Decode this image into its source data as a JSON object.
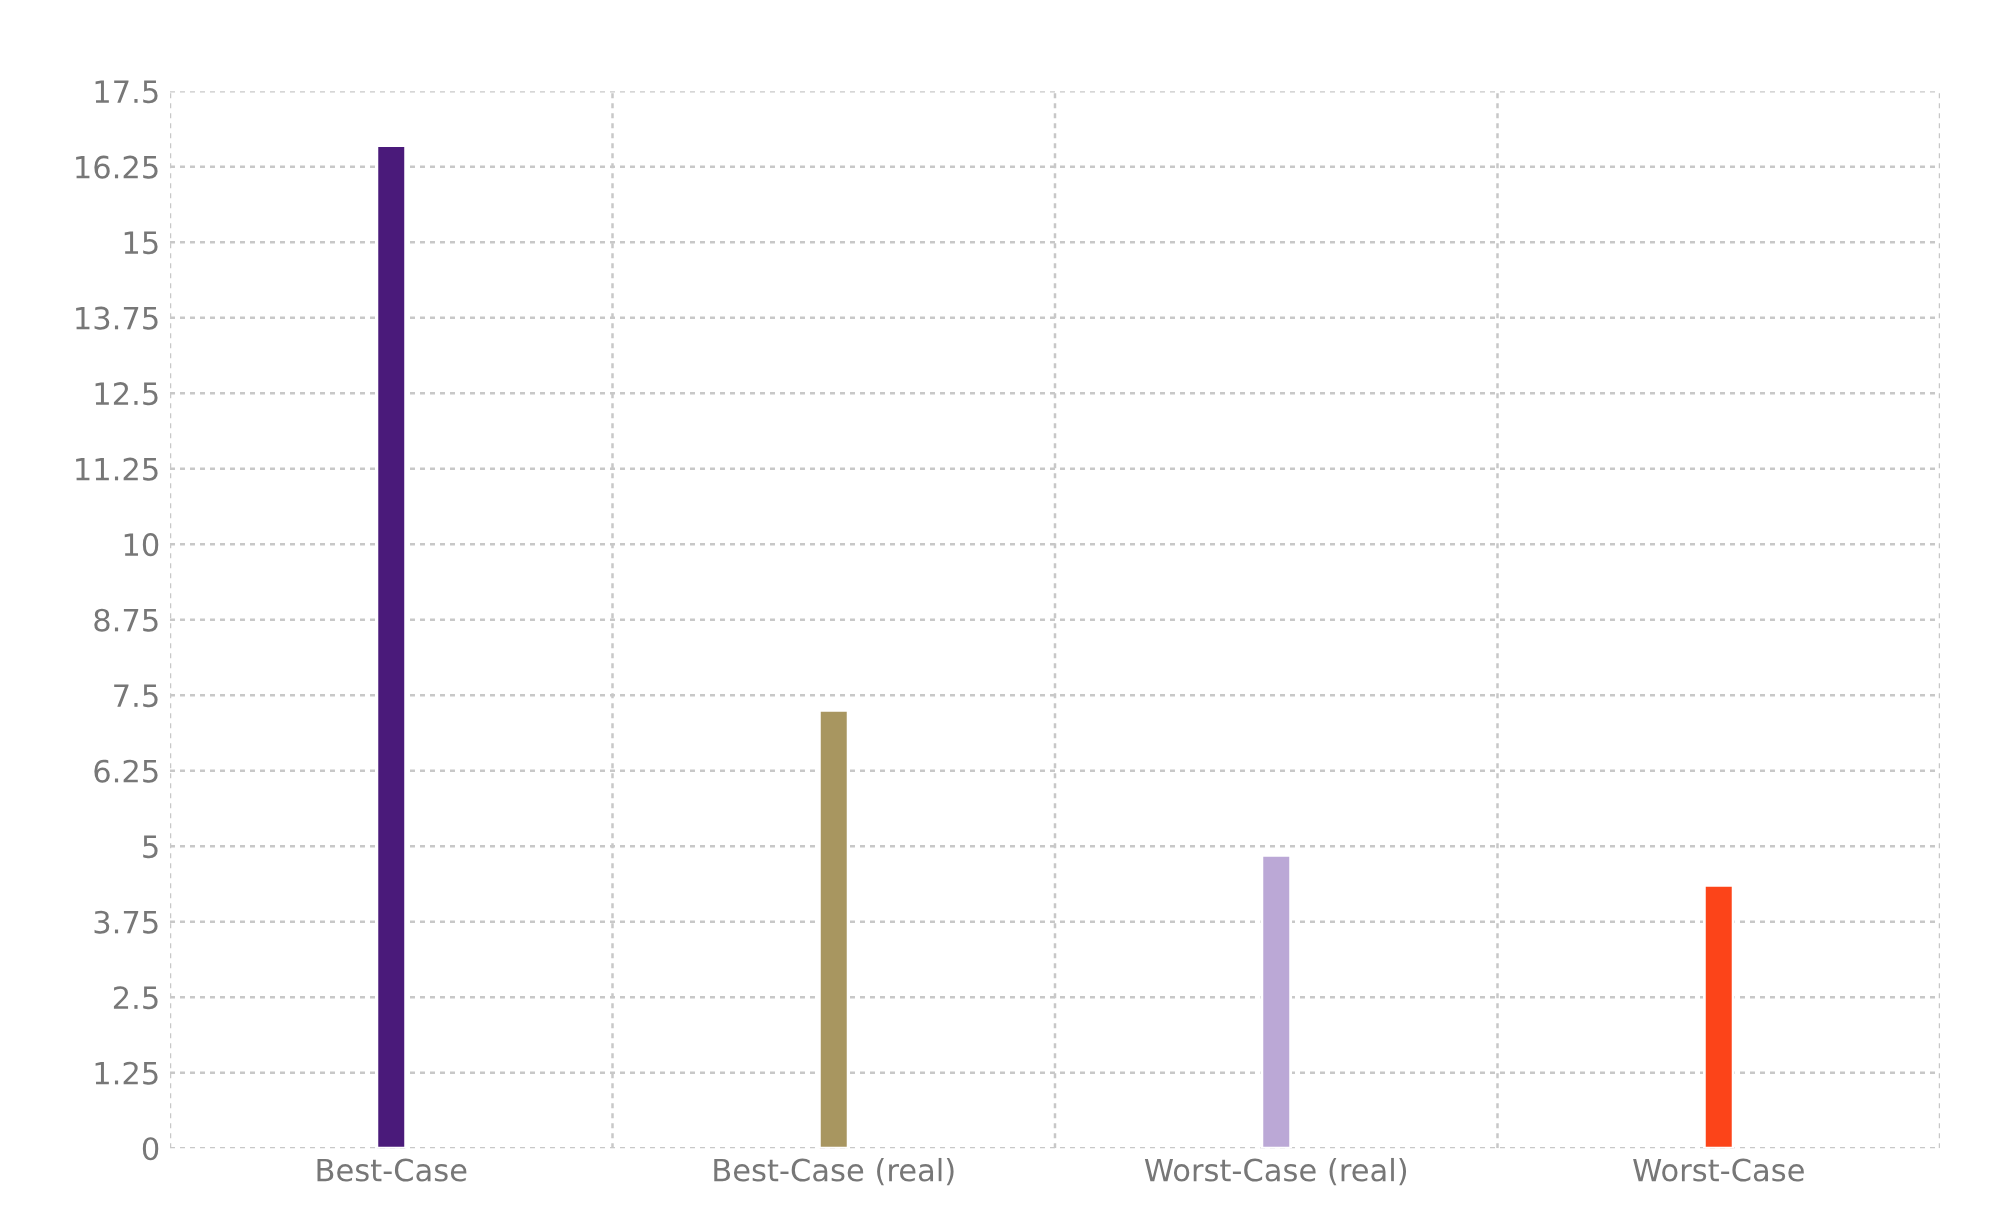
{
  "chart_data": {
    "type": "bar",
    "categories": [
      "Best-Case",
      "Best-Case (real)",
      "Worst-Case (real)",
      "Worst-Case"
    ],
    "values": [
      16.6,
      7.25,
      4.85,
      4.35
    ],
    "colors": [
      "#4a1a7a",
      "#a89660",
      "#bba8d6",
      "#fc4419"
    ],
    "ylim": [
      0,
      17.5
    ],
    "yticks": [
      0,
      1.25,
      2.5,
      3.75,
      5,
      6.25,
      7.5,
      8.75,
      10,
      11.25,
      12.5,
      13.75,
      15,
      16.25,
      17.5
    ],
    "grid": true,
    "legend": false
  }
}
